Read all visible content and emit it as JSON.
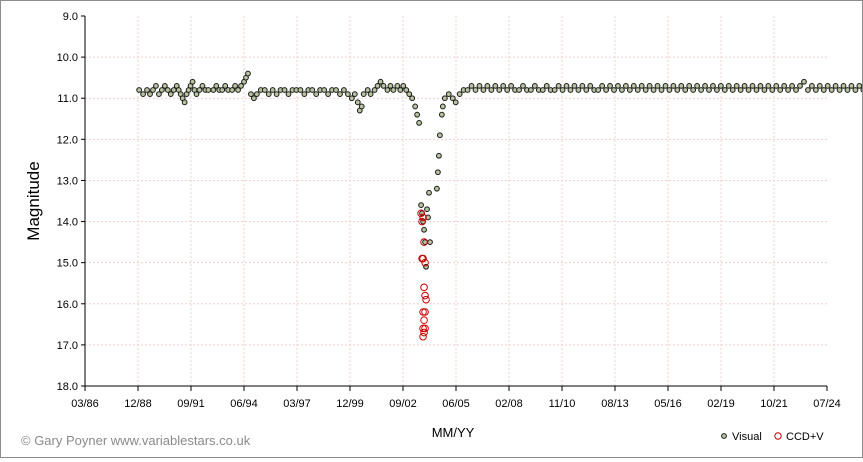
{
  "chart_data": {
    "type": "scatter",
    "title": "",
    "xlabel": "MM/YY",
    "ylabel": "Magnitude",
    "y_inverted": true,
    "ylim": [
      9.0,
      18.0
    ],
    "y_ticks": [
      "9.0",
      "10.0",
      "11.0",
      "12.0",
      "13.0",
      "14.0",
      "15.0",
      "16.0",
      "17.0",
      "18.0"
    ],
    "x_ticks": [
      "03/86",
      "12/88",
      "09/91",
      "06/94",
      "03/97",
      "12/99",
      "09/02",
      "06/05",
      "02/08",
      "11/10",
      "08/13",
      "05/16",
      "02/19",
      "10/21",
      "07/24"
    ],
    "grid": true,
    "legend_position": "bottom-right",
    "colors": {
      "visual_fill": "#b8c3a0",
      "visual_edge": "#1a1a1a",
      "ccd_edge": "#cc0000",
      "grid": "#f0d0d0"
    },
    "series": [
      {
        "name": "Visual",
        "points": [
          [
            1.9,
            10.8
          ],
          [
            2.3,
            10.9
          ],
          [
            2.7,
            10.8
          ],
          [
            3.0,
            10.9
          ],
          [
            3.3,
            10.8
          ],
          [
            3.6,
            10.7
          ],
          [
            3.9,
            10.9
          ],
          [
            4.2,
            10.8
          ],
          [
            4.5,
            10.7
          ],
          [
            4.8,
            10.8
          ],
          [
            5.1,
            10.9
          ],
          [
            5.4,
            10.8
          ],
          [
            5.7,
            10.7
          ],
          [
            5.9,
            10.8
          ],
          [
            6.1,
            10.9
          ],
          [
            6.3,
            11.0
          ],
          [
            6.5,
            11.1
          ],
          [
            6.7,
            10.9
          ],
          [
            6.9,
            10.8
          ],
          [
            7.1,
            10.7
          ],
          [
            7.3,
            10.6
          ],
          [
            7.5,
            10.8
          ],
          [
            7.7,
            10.9
          ],
          [
            8.0,
            10.8
          ],
          [
            8.3,
            10.7
          ],
          [
            8.6,
            10.8
          ],
          [
            8.9,
            10.8
          ],
          [
            9.4,
            10.8
          ],
          [
            9.7,
            10.7
          ],
          [
            10.0,
            10.8
          ],
          [
            10.3,
            10.8
          ],
          [
            10.6,
            10.7
          ],
          [
            10.9,
            10.8
          ],
          [
            11.3,
            10.8
          ],
          [
            11.6,
            10.7
          ],
          [
            11.9,
            10.8
          ],
          [
            12.2,
            10.7
          ],
          [
            12.5,
            10.6
          ],
          [
            12.7,
            10.5
          ],
          [
            12.9,
            10.4
          ],
          [
            13.2,
            10.9
          ],
          [
            13.5,
            11.0
          ],
          [
            13.8,
            10.9
          ],
          [
            14.2,
            10.8
          ],
          [
            14.6,
            10.8
          ],
          [
            15.0,
            10.9
          ],
          [
            15.4,
            10.8
          ],
          [
            15.8,
            10.9
          ],
          [
            16.2,
            10.8
          ],
          [
            16.6,
            10.8
          ],
          [
            17.0,
            10.9
          ],
          [
            17.4,
            10.8
          ],
          [
            17.8,
            10.8
          ],
          [
            18.2,
            10.8
          ],
          [
            18.6,
            10.9
          ],
          [
            19.0,
            10.8
          ],
          [
            19.4,
            10.8
          ],
          [
            19.8,
            10.9
          ],
          [
            20.2,
            10.8
          ],
          [
            20.6,
            10.8
          ],
          [
            21.0,
            10.9
          ],
          [
            21.4,
            10.8
          ],
          [
            21.8,
            10.8
          ],
          [
            22.2,
            10.9
          ],
          [
            22.6,
            10.8
          ],
          [
            23.0,
            10.9
          ],
          [
            23.4,
            11.0
          ],
          [
            23.7,
            10.9
          ],
          [
            24.0,
            11.1
          ],
          [
            24.2,
            11.3
          ],
          [
            24.4,
            11.2
          ],
          [
            24.6,
            10.9
          ],
          [
            25.0,
            10.8
          ],
          [
            25.3,
            10.9
          ],
          [
            25.7,
            10.8
          ],
          [
            26.0,
            10.7
          ],
          [
            26.3,
            10.6
          ],
          [
            26.6,
            10.7
          ],
          [
            27.0,
            10.8
          ],
          [
            27.3,
            10.7
          ],
          [
            27.6,
            10.8
          ],
          [
            28.0,
            10.7
          ],
          [
            28.3,
            10.8
          ],
          [
            28.6,
            10.7
          ],
          [
            28.9,
            10.8
          ],
          [
            29.2,
            10.9
          ],
          [
            29.5,
            11.0
          ],
          [
            29.8,
            11.2
          ],
          [
            30.0,
            11.4
          ],
          [
            30.2,
            11.6
          ],
          [
            30.4,
            13.6
          ],
          [
            30.5,
            13.8
          ],
          [
            30.6,
            14.0
          ],
          [
            30.7,
            14.2
          ],
          [
            30.8,
            14.5
          ],
          [
            30.9,
            15.1
          ],
          [
            31.0,
            13.7
          ],
          [
            31.1,
            13.9
          ],
          [
            31.2,
            13.3
          ],
          [
            31.3,
            14.5
          ],
          [
            32.0,
            13.2
          ],
          [
            32.1,
            12.8
          ],
          [
            32.2,
            12.4
          ],
          [
            32.3,
            11.9
          ],
          [
            32.5,
            11.4
          ],
          [
            32.6,
            11.2
          ],
          [
            32.8,
            11.0
          ],
          [
            33.2,
            10.9
          ],
          [
            33.6,
            11.0
          ],
          [
            33.9,
            11.1
          ],
          [
            34.3,
            10.9
          ],
          [
            34.7,
            10.8
          ],
          [
            35.1,
            10.8
          ],
          [
            35.5,
            10.7
          ],
          [
            35.9,
            10.8
          ],
          [
            36.3,
            10.7
          ],
          [
            36.7,
            10.8
          ],
          [
            37.1,
            10.7
          ],
          [
            37.5,
            10.8
          ],
          [
            37.9,
            10.7
          ],
          [
            38.3,
            10.8
          ],
          [
            38.7,
            10.7
          ],
          [
            39.1,
            10.8
          ],
          [
            39.5,
            10.7
          ],
          [
            39.9,
            10.8
          ],
          [
            40.3,
            10.8
          ],
          [
            40.7,
            10.7
          ],
          [
            41.1,
            10.8
          ],
          [
            41.5,
            10.8
          ],
          [
            41.9,
            10.7
          ],
          [
            42.3,
            10.8
          ],
          [
            42.7,
            10.8
          ],
          [
            43.1,
            10.7
          ],
          [
            43.5,
            10.8
          ],
          [
            43.9,
            10.8
          ],
          [
            44.3,
            10.7
          ],
          [
            44.7,
            10.8
          ],
          [
            45.1,
            10.7
          ],
          [
            45.5,
            10.8
          ],
          [
            45.9,
            10.7
          ],
          [
            46.3,
            10.8
          ],
          [
            46.7,
            10.7
          ],
          [
            47.1,
            10.8
          ],
          [
            47.5,
            10.7
          ],
          [
            47.9,
            10.8
          ],
          [
            48.3,
            10.8
          ],
          [
            48.7,
            10.7
          ],
          [
            49.1,
            10.8
          ],
          [
            49.5,
            10.7
          ],
          [
            49.9,
            10.8
          ],
          [
            50.3,
            10.7
          ],
          [
            50.7,
            10.8
          ],
          [
            51.1,
            10.7
          ],
          [
            51.5,
            10.8
          ],
          [
            51.9,
            10.7
          ],
          [
            52.3,
            10.8
          ],
          [
            52.7,
            10.7
          ],
          [
            53.1,
            10.8
          ],
          [
            53.5,
            10.7
          ],
          [
            53.9,
            10.8
          ],
          [
            54.3,
            10.7
          ],
          [
            54.7,
            10.8
          ],
          [
            55.1,
            10.7
          ],
          [
            55.5,
            10.8
          ],
          [
            55.9,
            10.7
          ],
          [
            56.3,
            10.8
          ],
          [
            56.7,
            10.7
          ],
          [
            57.1,
            10.8
          ],
          [
            57.5,
            10.7
          ],
          [
            57.9,
            10.8
          ],
          [
            58.3,
            10.7
          ],
          [
            58.7,
            10.8
          ],
          [
            59.1,
            10.7
          ],
          [
            59.5,
            10.8
          ],
          [
            59.9,
            10.7
          ],
          [
            60.3,
            10.8
          ],
          [
            60.7,
            10.7
          ],
          [
            61.1,
            10.8
          ],
          [
            61.5,
            10.7
          ],
          [
            61.9,
            10.8
          ],
          [
            62.3,
            10.7
          ],
          [
            62.7,
            10.8
          ],
          [
            63.1,
            10.7
          ],
          [
            63.5,
            10.8
          ],
          [
            63.9,
            10.7
          ],
          [
            64.3,
            10.8
          ],
          [
            64.7,
            10.7
          ],
          [
            65.1,
            10.8
          ],
          [
            65.5,
            10.7
          ],
          [
            65.9,
            10.8
          ],
          [
            66.3,
            10.7
          ],
          [
            66.7,
            10.8
          ],
          [
            67.1,
            10.7
          ],
          [
            67.5,
            10.8
          ],
          [
            67.9,
            10.7
          ],
          [
            68.3,
            10.8
          ],
          [
            68.7,
            10.7
          ],
          [
            69.1,
            10.6
          ],
          [
            69.5,
            10.8
          ],
          [
            69.9,
            10.7
          ],
          [
            70.3,
            10.8
          ],
          [
            70.7,
            10.7
          ],
          [
            71.1,
            10.8
          ],
          [
            71.5,
            10.7
          ],
          [
            71.9,
            10.8
          ],
          [
            72.3,
            10.7
          ],
          [
            72.7,
            10.8
          ],
          [
            73.1,
            10.7
          ],
          [
            73.5,
            10.8
          ],
          [
            73.9,
            10.7
          ],
          [
            74.3,
            10.8
          ],
          [
            74.7,
            10.7
          ],
          [
            75.1,
            10.8
          ],
          [
            75.5,
            10.7
          ],
          [
            75.9,
            10.8
          ],
          [
            76.3,
            10.7
          ]
        ]
      },
      {
        "name": "CCD+V",
        "points": [
          [
            30.4,
            13.8
          ],
          [
            30.5,
            14.0
          ],
          [
            30.6,
            13.9
          ],
          [
            30.7,
            14.5
          ],
          [
            30.5,
            14.9
          ],
          [
            30.6,
            14.9
          ],
          [
            30.8,
            15.0
          ],
          [
            30.7,
            15.6
          ],
          [
            30.8,
            15.8
          ],
          [
            30.9,
            15.9
          ],
          [
            30.6,
            16.2
          ],
          [
            30.7,
            16.4
          ],
          [
            30.8,
            16.2
          ],
          [
            30.6,
            16.6
          ],
          [
            30.7,
            16.7
          ],
          [
            30.6,
            16.8
          ],
          [
            30.8,
            16.6
          ]
        ]
      }
    ],
    "annotations": {
      "copyright": "© Gary Poyner www.variablestars.co.uk"
    }
  }
}
